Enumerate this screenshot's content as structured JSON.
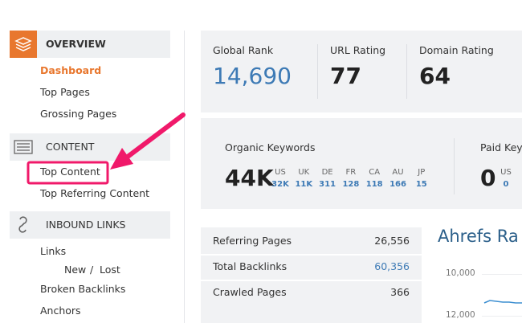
{
  "sidebar": {
    "sections": [
      {
        "title": "OVERVIEW",
        "items": [
          "Dashboard",
          "Top Pages",
          "Grossing Pages"
        ]
      },
      {
        "title": "CONTENT",
        "items": [
          "Top Content",
          "Top Referring Content"
        ]
      },
      {
        "title": "INBOUND LINKS",
        "items": [
          "Links",
          "Broken Backlinks",
          "Anchors"
        ],
        "sublinks": {
          "items": [
            "New",
            "Lost"
          ],
          "separator": "/"
        }
      }
    ]
  },
  "rank_panel": [
    {
      "label": "Global Rank",
      "value": "14,690"
    },
    {
      "label": "URL Rating",
      "value": "77"
    },
    {
      "label": "Domain Rating",
      "value": "64"
    }
  ],
  "keywords_panel": [
    {
      "label": "Organic Keywords",
      "value": "44K",
      "countries": [
        {
          "code": "US",
          "value": "32K"
        },
        {
          "code": "UK",
          "value": "11K"
        },
        {
          "code": "DE",
          "value": "311"
        },
        {
          "code": "FR",
          "value": "128"
        },
        {
          "code": "CA",
          "value": "118"
        },
        {
          "code": "AU",
          "value": "166"
        },
        {
          "code": "JP",
          "value": "15"
        }
      ]
    },
    {
      "label": "Paid Key",
      "value": "0",
      "countries": [
        {
          "code": "US",
          "value": "0"
        }
      ]
    }
  ],
  "stats_table": {
    "rows": [
      [
        "Referring Pages",
        "26,556"
      ],
      [
        "Total Backlinks",
        "60,356"
      ],
      [
        "Crawled Pages",
        "366"
      ]
    ]
  },
  "chart": {
    "title": "Ahrefs Ra",
    "y_labels": [
      "10,000",
      "12,000"
    ]
  }
}
